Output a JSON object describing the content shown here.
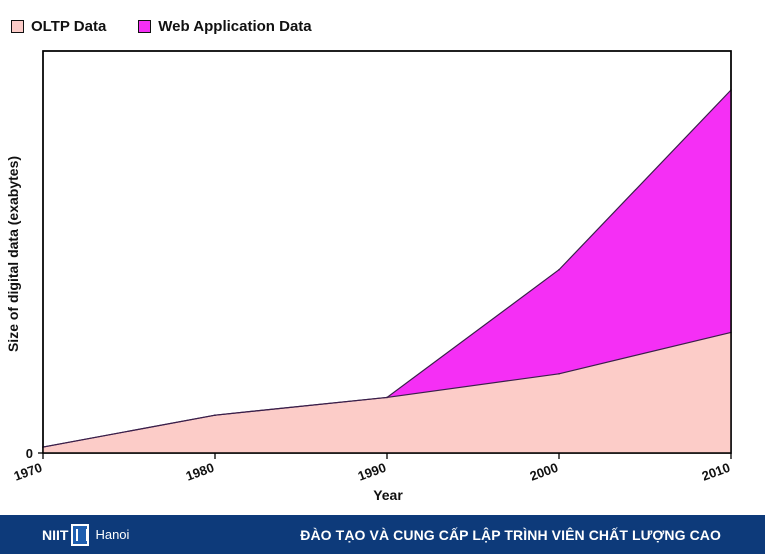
{
  "chart_data": {
    "type": "area",
    "stacked": true,
    "x": [
      1970,
      1980,
      1990,
      2000,
      2010
    ],
    "series": [
      {
        "name": "OLTP Data",
        "values": [
          0.5,
          3.2,
          4.7,
          6.7,
          10.2
        ],
        "color": "#fcccc8"
      },
      {
        "name": "Web Application Data",
        "values": [
          0,
          0,
          0,
          8.8,
          20.5
        ],
        "color": "#f52ff5"
      }
    ],
    "xlabel": "Year",
    "ylabel": "Size of digital data (exabytes)",
    "xlim": [
      1970,
      2010
    ],
    "ylim": [
      0,
      34
    ],
    "y_tick_labels": [
      "0"
    ],
    "legend_position": "top-left"
  },
  "footer": {
    "logo_text": "NIIT",
    "logo_sub": "Hanoi",
    "slogan": "ĐÀO TẠO VÀ CUNG CẤP LẬP TRÌNH VIÊN CHẤT LƯỢNG CAO",
    "background": "#0d3a7a"
  }
}
